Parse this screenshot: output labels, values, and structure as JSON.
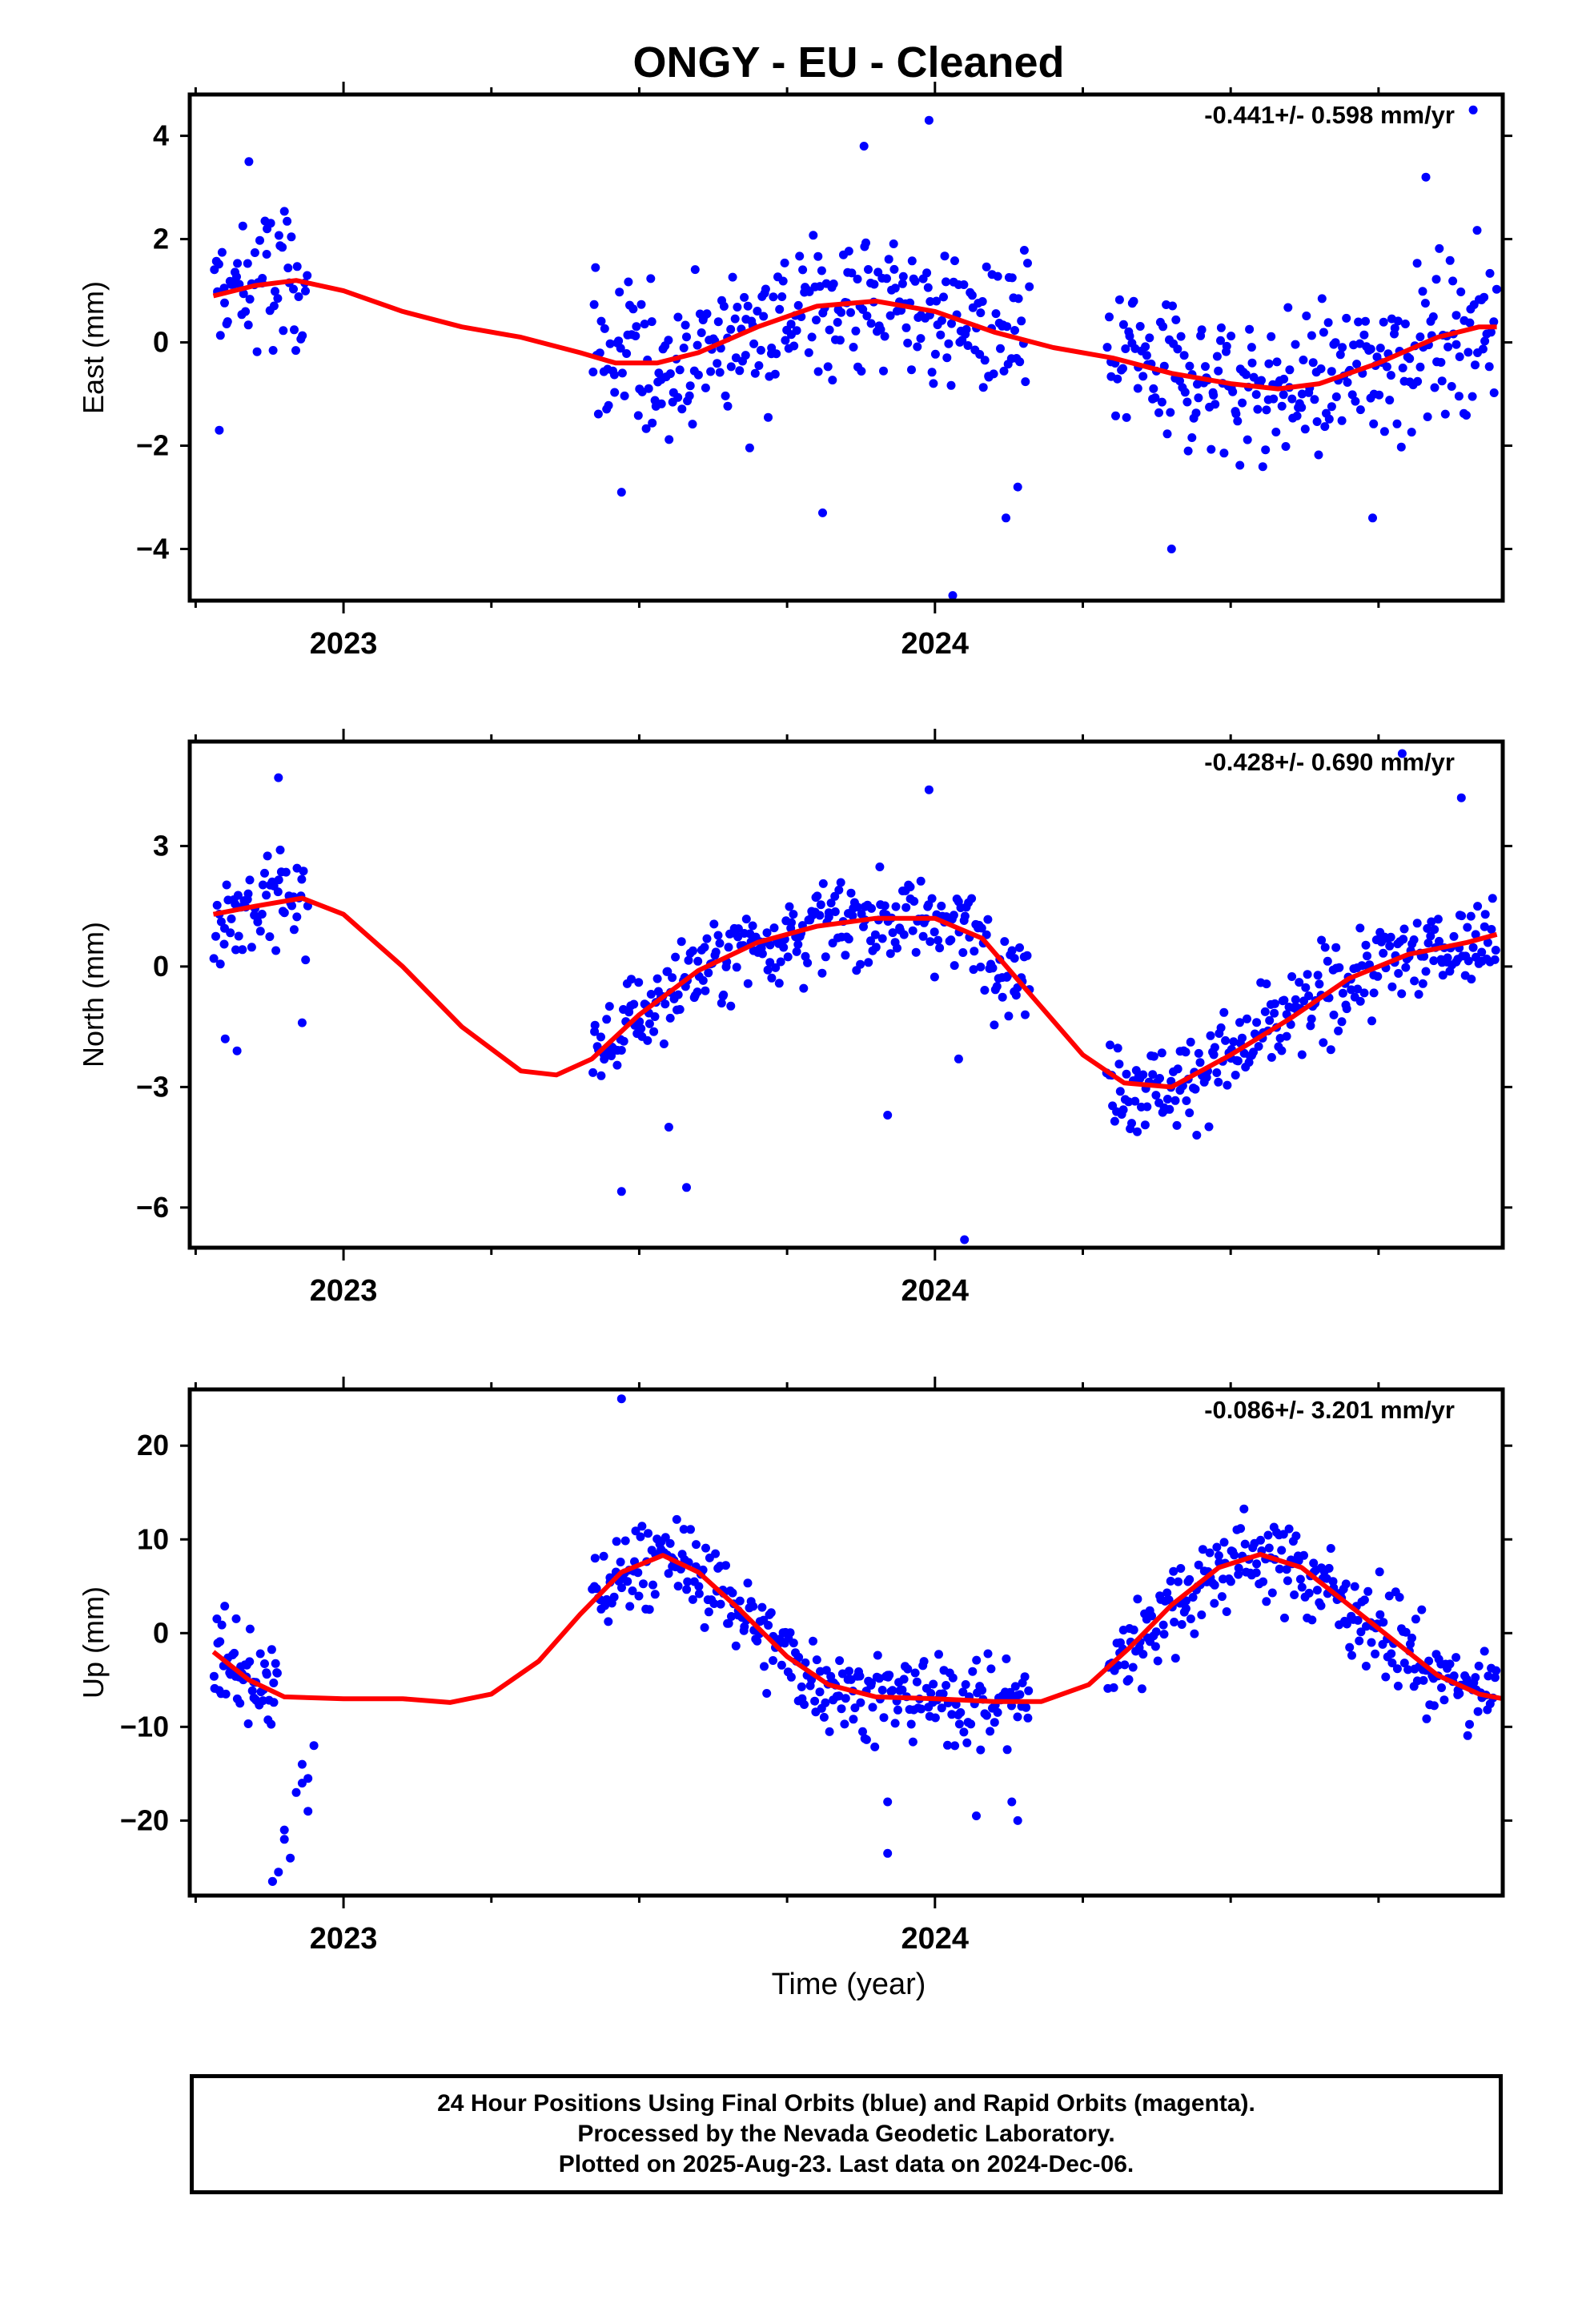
{
  "figure": {
    "title": "ONGY  - EU - Cleaned",
    "xlabel": "Time (year)",
    "footer": [
      "24 Hour Positions Using Final Orbits (blue) and Rapid Orbits (magenta).",
      "Processed by the Nevada Geodetic Laboratory.",
      "Plotted on 2025-Aug-23. Last data on 2024-Dec-06."
    ]
  },
  "colors": {
    "points": "#0000ff",
    "model": "#ff0000",
    "frame": "#000000"
  },
  "chart_data": [
    {
      "type": "scatter",
      "panel": "east",
      "ylabel": "East (mm)",
      "rate_label": "-0.441+/- 0.598 mm/yr",
      "xlim": [
        2022.74,
        2024.96
      ],
      "ylim": [
        -5.0,
        4.8
      ],
      "yticks": [
        -4,
        -2,
        0,
        2,
        4
      ],
      "xtick_labels": [
        "2023",
        "2024"
      ],
      "model": [
        [
          2022.78,
          0.9
        ],
        [
          2022.85,
          1.1
        ],
        [
          2022.92,
          1.2
        ],
        [
          2023.0,
          1.0
        ],
        [
          2023.1,
          0.6
        ],
        [
          2023.2,
          0.3
        ],
        [
          2023.3,
          0.1
        ],
        [
          2023.4,
          -0.2
        ],
        [
          2023.46,
          -0.4
        ],
        [
          2023.53,
          -0.4
        ],
        [
          2023.6,
          -0.2
        ],
        [
          2023.7,
          0.3
        ],
        [
          2023.8,
          0.7
        ],
        [
          2023.9,
          0.8
        ],
        [
          2024.0,
          0.6
        ],
        [
          2024.1,
          0.2
        ],
        [
          2024.2,
          -0.1
        ],
        [
          2024.3,
          -0.3
        ],
        [
          2024.4,
          -0.6
        ],
        [
          2024.5,
          -0.8
        ],
        [
          2024.58,
          -0.9
        ],
        [
          2024.65,
          -0.8
        ],
        [
          2024.75,
          -0.4
        ],
        [
          2024.85,
          0.1
        ],
        [
          2024.92,
          0.3
        ],
        [
          2024.95,
          0.3
        ]
      ],
      "segments": [
        {
          "x0": 2022.78,
          "x1": 2022.94,
          "n": 60,
          "spread": 1.1
        },
        {
          "x0": 2023.42,
          "x1": 2024.16,
          "n": 290,
          "spread": 1.05
        },
        {
          "x0": 2024.29,
          "x1": 2024.95,
          "n": 260,
          "spread": 1.0
        }
      ],
      "outliers": [
        [
          2022.79,
          -1.7
        ],
        [
          2022.84,
          3.5
        ],
        [
          2023.47,
          -2.9
        ],
        [
          2023.81,
          -3.3
        ],
        [
          2023.88,
          3.8
        ],
        [
          2023.99,
          4.3
        ],
        [
          2024.03,
          -4.9
        ],
        [
          2024.12,
          -3.4
        ],
        [
          2024.4,
          -4.0
        ],
        [
          2024.74,
          -3.4
        ],
        [
          2024.91,
          4.5
        ],
        [
          2024.83,
          3.2
        ],
        [
          2024.14,
          -2.8
        ]
      ]
    },
    {
      "type": "scatter",
      "panel": "north",
      "ylabel": "North (mm)",
      "rate_label": "-0.428+/- 0.690 mm/yr",
      "xlim": [
        2022.74,
        2024.96
      ],
      "ylim": [
        -7.0,
        5.6
      ],
      "yticks": [
        -6,
        -3,
        0,
        3
      ],
      "xtick_labels": [
        "2023",
        "2024"
      ],
      "model": [
        [
          2022.78,
          1.3
        ],
        [
          2022.85,
          1.5
        ],
        [
          2022.93,
          1.7
        ],
        [
          2023.0,
          1.3
        ],
        [
          2023.1,
          0.0
        ],
        [
          2023.2,
          -1.5
        ],
        [
          2023.3,
          -2.6
        ],
        [
          2023.36,
          -2.7
        ],
        [
          2023.42,
          -2.3
        ],
        [
          2023.5,
          -1.2
        ],
        [
          2023.6,
          -0.1
        ],
        [
          2023.7,
          0.6
        ],
        [
          2023.8,
          1.0
        ],
        [
          2023.9,
          1.2
        ],
        [
          2024.0,
          1.2
        ],
        [
          2024.08,
          0.7
        ],
        [
          2024.15,
          -0.5
        ],
        [
          2024.25,
          -2.2
        ],
        [
          2024.32,
          -2.9
        ],
        [
          2024.4,
          -3.0
        ],
        [
          2024.5,
          -2.2
        ],
        [
          2024.6,
          -1.3
        ],
        [
          2024.7,
          -0.3
        ],
        [
          2024.8,
          0.3
        ],
        [
          2024.9,
          0.6
        ],
        [
          2024.95,
          0.8
        ]
      ],
      "segments": [
        {
          "x0": 2022.78,
          "x1": 2022.94,
          "n": 60,
          "spread": 0.9
        },
        {
          "x0": 2023.42,
          "x1": 2024.16,
          "n": 290,
          "spread": 0.8
        },
        {
          "x0": 2024.29,
          "x1": 2024.95,
          "n": 260,
          "spread": 0.8
        }
      ],
      "outliers": [
        [
          2022.8,
          -1.8
        ],
        [
          2022.82,
          -2.1
        ],
        [
          2022.89,
          4.7
        ],
        [
          2022.93,
          -1.4
        ],
        [
          2023.47,
          -5.6
        ],
        [
          2023.58,
          -5.5
        ],
        [
          2023.55,
          -4.0
        ],
        [
          2023.99,
          4.4
        ],
        [
          2024.04,
          -2.3
        ],
        [
          2024.05,
          -6.8
        ],
        [
          2023.92,
          -3.7
        ],
        [
          2024.79,
          5.3
        ],
        [
          2024.89,
          4.2
        ]
      ]
    },
    {
      "type": "scatter",
      "panel": "up",
      "ylabel": "Up (mm)",
      "rate_label": "-0.086+/- 3.201 mm/yr",
      "xlim": [
        2022.74,
        2024.96
      ],
      "ylim": [
        -28,
        26
      ],
      "yticks": [
        -20,
        -10,
        0,
        10,
        20
      ],
      "xtick_labels": [
        "2023",
        "2024"
      ],
      "model": [
        [
          2022.78,
          -2.0
        ],
        [
          2022.84,
          -5.0
        ],
        [
          2022.9,
          -6.8
        ],
        [
          2023.0,
          -7.0
        ],
        [
          2023.1,
          -7.0
        ],
        [
          2023.18,
          -7.4
        ],
        [
          2023.25,
          -6.5
        ],
        [
          2023.33,
          -3.0
        ],
        [
          2023.4,
          2.0
        ],
        [
          2023.47,
          6.5
        ],
        [
          2023.54,
          8.3
        ],
        [
          2023.6,
          6.5
        ],
        [
          2023.67,
          2.5
        ],
        [
          2023.75,
          -2.5
        ],
        [
          2023.82,
          -5.5
        ],
        [
          2023.9,
          -6.8
        ],
        [
          2024.0,
          -7.0
        ],
        [
          2024.1,
          -7.3
        ],
        [
          2024.18,
          -7.3
        ],
        [
          2024.26,
          -5.5
        ],
        [
          2024.33,
          -1.5
        ],
        [
          2024.4,
          3.0
        ],
        [
          2024.48,
          7.0
        ],
        [
          2024.55,
          8.4
        ],
        [
          2024.62,
          7.0
        ],
        [
          2024.7,
          3.0
        ],
        [
          2024.78,
          -1.0
        ],
        [
          2024.85,
          -4.5
        ],
        [
          2024.92,
          -6.5
        ],
        [
          2024.96,
          -7.0
        ]
      ],
      "segments": [
        {
          "x0": 2022.78,
          "x1": 2022.89,
          "n": 55,
          "spread": 3.5
        },
        {
          "x0": 2023.42,
          "x1": 2024.16,
          "n": 290,
          "spread": 3.3
        },
        {
          "x0": 2024.29,
          "x1": 2024.95,
          "n": 260,
          "spread": 3.3
        }
      ],
      "outliers": [
        [
          2022.88,
          -26.5
        ],
        [
          2022.9,
          -22.0
        ],
        [
          2022.91,
          -24.0
        ],
        [
          2022.9,
          -21.0
        ],
        [
          2022.92,
          -17.0
        ],
        [
          2022.93,
          -16.0
        ],
        [
          2022.94,
          -15.5
        ],
        [
          2022.94,
          -19.0
        ],
        [
          2022.95,
          -12.0
        ],
        [
          2022.93,
          -14.0
        ],
        [
          2022.88,
          -26.5
        ],
        [
          2022.89,
          -25.5
        ],
        [
          2023.47,
          25.0
        ],
        [
          2023.92,
          -23.5
        ],
        [
          2023.92,
          -18.0
        ],
        [
          2024.07,
          -19.5
        ],
        [
          2024.14,
          -20.0
        ],
        [
          2024.13,
          -18.0
        ]
      ]
    }
  ]
}
